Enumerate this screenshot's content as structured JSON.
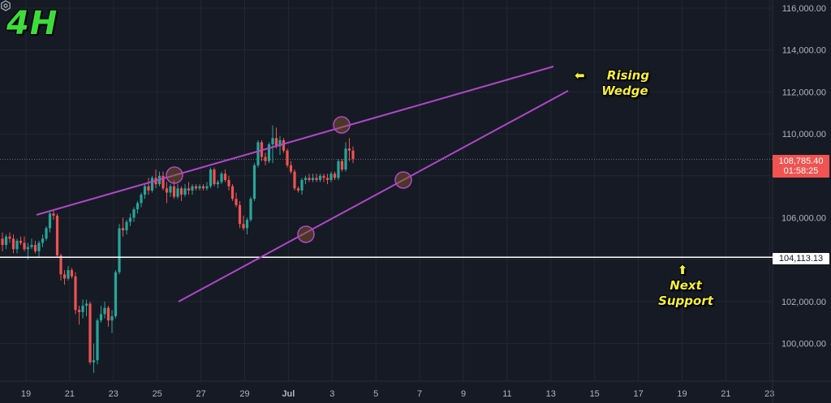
{
  "timeframe_label": "4H",
  "annotations": {
    "wedge": {
      "line1": "Rising",
      "line2": "Wedge"
    },
    "support": {
      "line1": "Next",
      "line2": "Support"
    }
  },
  "price_tags": {
    "last_price": "108,785.40",
    "countdown": "01:58:25",
    "support_level": "104,113.13"
  },
  "colors": {
    "background": "#161a25",
    "grid": "#232733",
    "up": "#26a69a",
    "down": "#ef5350",
    "wedge_line": "#b048c8",
    "support_line": "#ffffff",
    "annotation": "#f5f03a",
    "timeframe": "#3ddc3d"
  },
  "chart_data": {
    "type": "candlestick",
    "title": "BTC 4H Rising Wedge",
    "y_axis": {
      "ticks": [
        "116,000.00",
        "114,000.00",
        "112,000.00",
        "110,000.00",
        "108,000.00",
        "106,000.00",
        "104,000.00",
        "102,000.00",
        "100,000.00"
      ],
      "visible_tick_labels": [
        "116,000.00",
        "114,000.00",
        "112,000.00",
        "110,000.00",
        "106,000.00",
        "102,000.00",
        "100,000.00"
      ],
      "range": [
        98500,
        116200
      ]
    },
    "x_axis": {
      "ticks": [
        "19",
        "21",
        "23",
        "25",
        "27",
        "29",
        "Jul",
        "3",
        "5",
        "7",
        "9",
        "11",
        "13",
        "15",
        "17",
        "19",
        "21",
        "23"
      ]
    },
    "grid": true,
    "last_price": 108785.4,
    "support_level": 104113.13,
    "wedge": {
      "upper_line": [
        [
          45,
          265
        ],
        [
          682,
          82
        ]
      ],
      "lower_line": [
        [
          220,
          372
        ],
        [
          700,
          112
        ]
      ],
      "touch_points": [
        [
          215,
          216
        ],
        [
          421,
          154
        ],
        [
          377,
          289
        ],
        [
          497,
          222
        ]
      ]
    },
    "candles": [
      [
        105000,
        105300,
        104400,
        104700
      ],
      [
        104700,
        105200,
        104500,
        105100
      ],
      [
        105100,
        105300,
        104800,
        105000
      ],
      [
        105000,
        105200,
        104300,
        104500
      ],
      [
        104500,
        105000,
        104300,
        104900
      ],
      [
        104900,
        105100,
        104700,
        104800
      ],
      [
        104800,
        105100,
        104400,
        104500
      ],
      [
        104500,
        104800,
        104000,
        104600
      ],
      [
        104600,
        105000,
        104500,
        104700
      ],
      [
        104700,
        104900,
        104300,
        104400
      ],
      [
        104400,
        104900,
        104100,
        104800
      ],
      [
        104800,
        105200,
        104600,
        105000
      ],
      [
        105000,
        105600,
        104900,
        105500
      ],
      [
        105500,
        106300,
        105300,
        106200
      ],
      [
        106200,
        106400,
        105900,
        106100
      ],
      [
        106100,
        106200,
        104100,
        104200
      ],
      [
        104200,
        104300,
        103000,
        103300
      ],
      [
        103300,
        103500,
        102800,
        103100
      ],
      [
        103100,
        103700,
        103000,
        103500
      ],
      [
        103500,
        103600,
        103100,
        103200
      ],
      [
        103200,
        103400,
        101400,
        101600
      ],
      [
        101600,
        101800,
        100900,
        101500
      ],
      [
        101500,
        102100,
        101200,
        101800
      ],
      [
        101800,
        102100,
        101300,
        101900
      ],
      [
        101900,
        102000,
        99000,
        99100
      ],
      [
        99100,
        100000,
        98600,
        99200
      ],
      [
        99200,
        101200,
        99000,
        101100
      ],
      [
        101100,
        101800,
        101000,
        101400
      ],
      [
        101400,
        102000,
        101200,
        101700
      ],
      [
        101700,
        101800,
        100800,
        101100
      ],
      [
        101100,
        101600,
        100500,
        101300
      ],
      [
        101300,
        103500,
        101200,
        103400
      ],
      [
        103400,
        105700,
        103300,
        105500
      ],
      [
        105500,
        106000,
        105100,
        105400
      ],
      [
        105400,
        105900,
        105200,
        105800
      ],
      [
        105800,
        106200,
        105600,
        106000
      ],
      [
        106000,
        106500,
        105800,
        106400
      ],
      [
        106400,
        106800,
        106200,
        106700
      ],
      [
        106700,
        107200,
        106500,
        107100
      ],
      [
        107100,
        107600,
        106900,
        107500
      ],
      [
        107500,
        107900,
        107100,
        107300
      ],
      [
        107300,
        108000,
        107200,
        107900
      ],
      [
        107900,
        108300,
        107400,
        107600
      ],
      [
        107600,
        108200,
        107500,
        108000
      ],
      [
        108000,
        108200,
        107300,
        107400
      ],
      [
        107400,
        107700,
        106700,
        107200
      ],
      [
        107200,
        107600,
        107000,
        107500
      ],
      [
        107500,
        107800,
        106900,
        107000
      ],
      [
        107000,
        107600,
        106900,
        107400
      ],
      [
        107400,
        107500,
        106800,
        107100
      ],
      [
        107100,
        107600,
        107000,
        107400
      ],
      [
        107400,
        107700,
        107100,
        107300
      ],
      [
        107300,
        107600,
        107100,
        107500
      ],
      [
        107500,
        107600,
        107300,
        107400
      ],
      [
        107400,
        107600,
        107300,
        107500
      ],
      [
        107500,
        107600,
        107300,
        107400
      ],
      [
        107400,
        107700,
        107300,
        107500
      ],
      [
        107500,
        108400,
        107400,
        108300
      ],
      [
        108300,
        108400,
        107500,
        107600
      ],
      [
        107600,
        107800,
        107400,
        107700
      ],
      [
        107700,
        108200,
        107600,
        108100
      ],
      [
        108100,
        108300,
        107700,
        107800
      ],
      [
        107800,
        108000,
        107300,
        107500
      ],
      [
        107500,
        107600,
        106800,
        106900
      ],
      [
        106900,
        107200,
        106500,
        106600
      ],
      [
        106600,
        106800,
        105500,
        105700
      ],
      [
        105700,
        106100,
        105400,
        105500
      ],
      [
        105500,
        106000,
        105200,
        105900
      ],
      [
        105900,
        107000,
        105800,
        106900
      ],
      [
        106900,
        108600,
        106800,
        108500
      ],
      [
        108500,
        109700,
        108400,
        109600
      ],
      [
        109600,
        109700,
        108700,
        108900
      ],
      [
        108900,
        109100,
        108500,
        108700
      ],
      [
        108700,
        109600,
        108600,
        109500
      ],
      [
        109500,
        110400,
        108600,
        109800
      ],
      [
        109800,
        110300,
        109300,
        109400
      ],
      [
        109400,
        109900,
        109000,
        109700
      ],
      [
        109700,
        109800,
        109100,
        109200
      ],
      [
        109200,
        109300,
        108400,
        108500
      ],
      [
        108500,
        108700,
        108100,
        108200
      ],
      [
        108200,
        108300,
        107300,
        107400
      ],
      [
        107400,
        107500,
        107200,
        107300
      ],
      [
        107300,
        107900,
        107100,
        107800
      ],
      [
        107800,
        108000,
        107600,
        107900
      ],
      [
        107900,
        108100,
        107700,
        107800
      ],
      [
        107800,
        108100,
        107700,
        107900
      ],
      [
        107900,
        108100,
        107700,
        107800
      ],
      [
        107800,
        108100,
        107700,
        108000
      ],
      [
        108000,
        108100,
        107700,
        107900
      ],
      [
        107900,
        108100,
        107600,
        107800
      ],
      [
        107800,
        108200,
        107700,
        108100
      ],
      [
        108100,
        108200,
        107800,
        107900
      ],
      [
        107900,
        108800,
        107800,
        108700
      ],
      [
        108700,
        108800,
        108200,
        108300
      ],
      [
        108300,
        109600,
        108200,
        109300
      ],
      [
        109300,
        109800,
        108700,
        109200
      ],
      [
        109200,
        109400,
        108600,
        108800
      ]
    ]
  }
}
